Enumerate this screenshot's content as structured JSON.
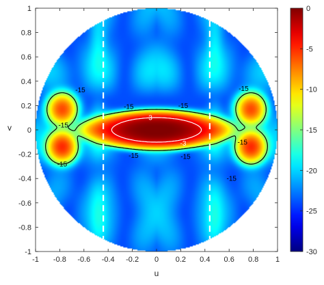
{
  "chart_data": {
    "type": "heatmap",
    "title": "",
    "xlabel": "u",
    "ylabel": "v",
    "xlim": [
      -1,
      1
    ],
    "ylim": [
      -1,
      1
    ],
    "x_ticks": [
      "-1",
      "-0.8",
      "-0.6",
      "-0.4",
      "-0.2",
      "0",
      "0.2",
      "0.4",
      "0.6",
      "0.8",
      "1"
    ],
    "y_ticks": [
      "-1",
      "-0.8",
      "-0.6",
      "-0.4",
      "-0.2",
      "0",
      "0.2",
      "0.4",
      "0.6",
      "0.8",
      "1"
    ],
    "x_tick_values": [
      -1,
      -0.8,
      -0.6,
      -0.4,
      -0.2,
      0,
      0.2,
      0.4,
      0.6,
      0.8,
      1
    ],
    "y_tick_values": [
      -1,
      -0.8,
      -0.6,
      -0.4,
      -0.2,
      0,
      0.2,
      0.4,
      0.6,
      0.8,
      1
    ],
    "colorbar": {
      "range": [
        -30,
        0
      ],
      "ticks": [
        "0",
        "-5",
        "-10",
        "-15",
        "-20",
        "-25",
        "-30"
      ],
      "tick_values": [
        0,
        -5,
        -10,
        -15,
        -20,
        -25,
        -30
      ],
      "colormap": "jet"
    },
    "region": "unit circle u^2 + v^2 <= 1",
    "grid": false,
    "dashed_lines_u": [
      -0.44,
      0.44
    ],
    "contour_levels": [
      {
        "level": -3,
        "label": "-3",
        "color": "#ffffff",
        "label_count": 2
      },
      {
        "level": -15,
        "label": "-15",
        "color": "#000000",
        "label_count": 10
      }
    ],
    "features": [
      {
        "name": "main lobe",
        "u": 0,
        "v": 0,
        "peak_db": 0,
        "half_width_u": 0.36,
        "half_height_v": 0.1
      },
      {
        "name": "side lobe",
        "u": -0.78,
        "v": 0.17,
        "peak_db": -6
      },
      {
        "name": "side lobe",
        "u": -0.78,
        "v": -0.14,
        "peak_db": -5
      },
      {
        "name": "side lobe",
        "u": 0.78,
        "v": 0.17,
        "peak_db": -6
      },
      {
        "name": "side lobe",
        "u": 0.78,
        "v": -0.14,
        "peak_db": -5
      }
    ]
  }
}
